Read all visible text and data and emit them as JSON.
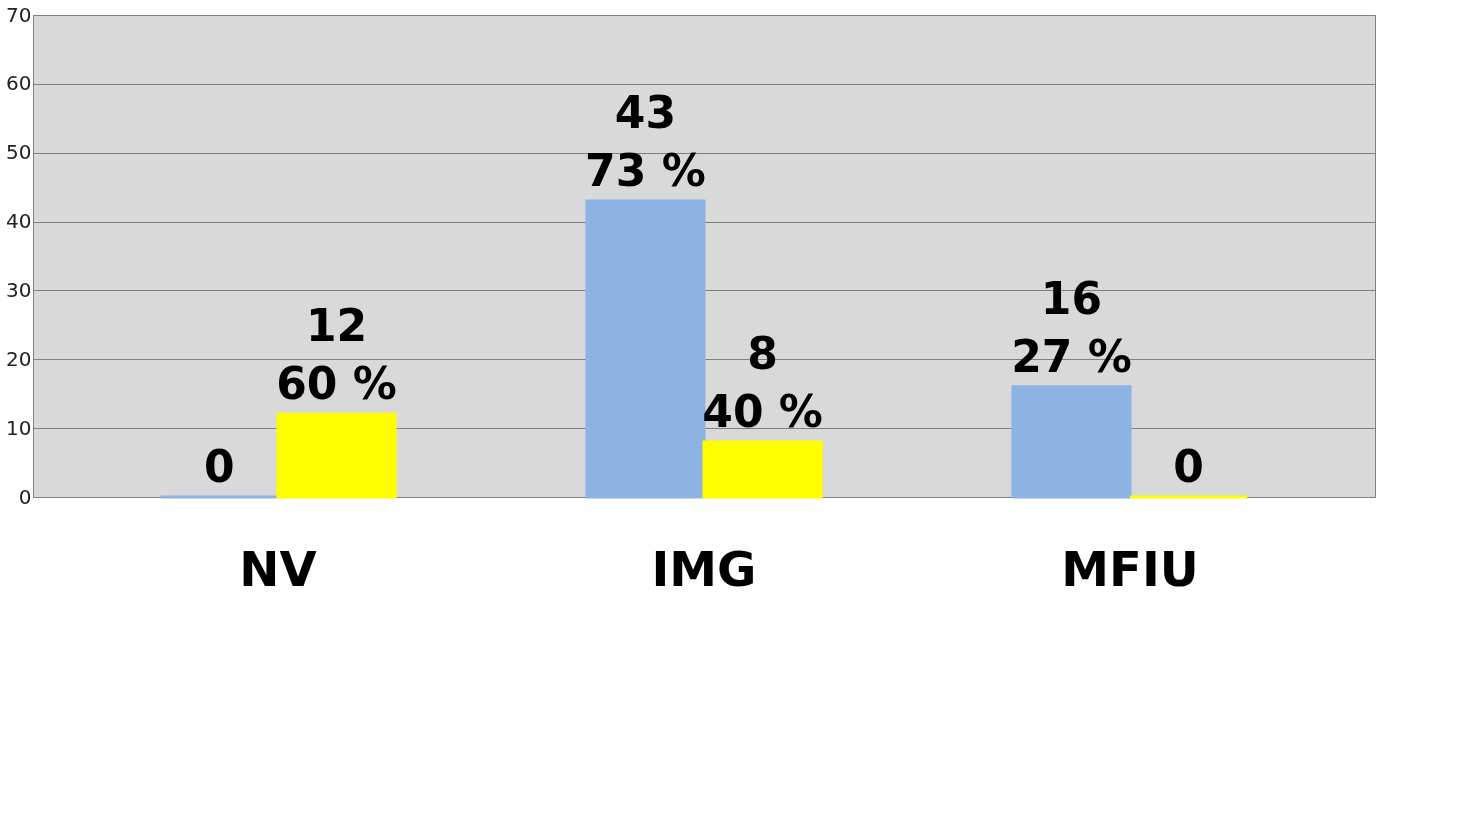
{
  "chart_data": {
    "type": "bar",
    "categories": [
      "NV",
      "IMG",
      "MFIU"
    ],
    "series": [
      {
        "color": "#8db3e2",
        "values": [
          0,
          43,
          16
        ],
        "value_labels": [
          "0",
          "43\n73 %",
          "16\n27 %"
        ]
      },
      {
        "color": "#ffff00",
        "values": [
          12,
          8,
          0
        ],
        "value_labels": [
          "12\n60 %",
          "8\n40 %",
          "0"
        ]
      }
    ],
    "ylim": [
      0,
      70
    ],
    "yticks": [
      0,
      10,
      20,
      30,
      40,
      50,
      60,
      70
    ],
    "grid": "y",
    "legend": false
  }
}
